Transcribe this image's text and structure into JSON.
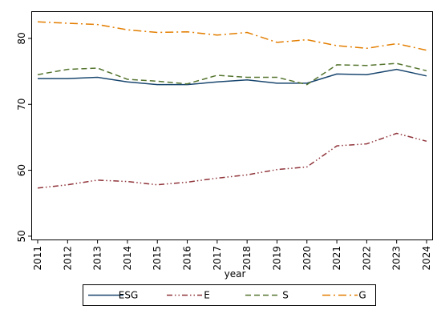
{
  "chart_data": {
    "type": "line",
    "title": "",
    "xlabel": "year",
    "ylabel": "",
    "x": [
      2011,
      2012,
      2013,
      2014,
      2015,
      2016,
      2017,
      2018,
      2019,
      2020,
      2021,
      2022,
      2023,
      2024
    ],
    "xlim": [
      2011,
      2024
    ],
    "ylim": [
      49.5,
      84
    ],
    "yticks": [
      50,
      60,
      70,
      80
    ],
    "grid": false,
    "legend_position": "bottom",
    "series": [
      {
        "name": "ESG",
        "color": "#1a476f",
        "dash": "solid",
        "values": [
          73.9,
          73.9,
          74.1,
          73.4,
          73.0,
          73.0,
          73.4,
          73.7,
          73.2,
          73.2,
          74.6,
          74.5,
          75.3,
          74.3
        ]
      },
      {
        "name": "E",
        "color": "#90353b",
        "dash": "dash-dot-dot",
        "values": [
          57.3,
          57.8,
          58.5,
          58.3,
          57.8,
          58.2,
          58.8,
          59.3,
          60.1,
          60.5,
          63.7,
          64.0,
          65.6,
          64.4
        ]
      },
      {
        "name": "S",
        "color": "#55752f",
        "dash": "dash",
        "values": [
          74.5,
          75.3,
          75.5,
          73.8,
          73.5,
          73.1,
          74.4,
          74.1,
          74.1,
          73.0,
          76.0,
          75.9,
          76.2,
          75.1
        ]
      },
      {
        "name": "G",
        "color": "#e37e00",
        "dash": "dash-dot",
        "values": [
          82.5,
          82.3,
          82.1,
          81.3,
          80.9,
          81.0,
          80.5,
          80.9,
          79.4,
          79.8,
          78.9,
          78.5,
          79.2,
          78.2
        ]
      }
    ]
  }
}
